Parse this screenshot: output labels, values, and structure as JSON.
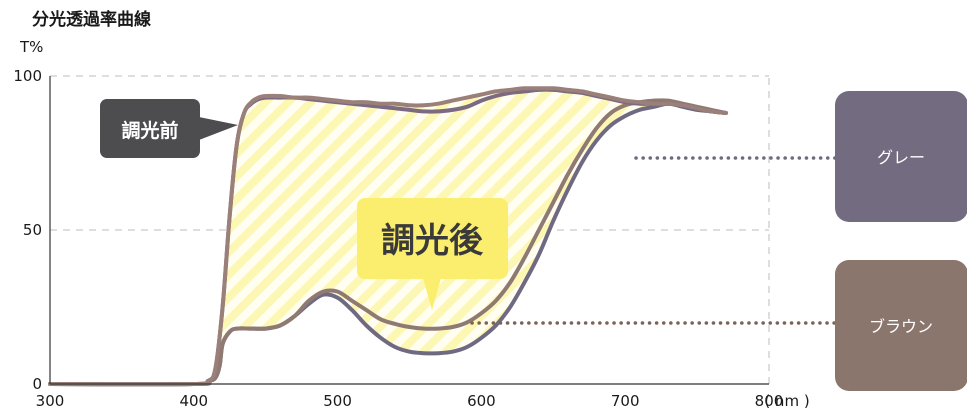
{
  "chart_data": {
    "type": "line",
    "title": "分光透過率曲線",
    "ylabel": "T%",
    "xlabel": "( nm )",
    "xlim": [
      300,
      800
    ],
    "ylim": [
      0,
      100
    ],
    "x_ticks": [
      "300",
      "400",
      "500",
      "600",
      "700",
      "800"
    ],
    "y_ticks": [
      "100",
      "50",
      "0"
    ],
    "grid": "dashed horizontal at 50 and 100, dashed vertical at 800",
    "series": [
      {
        "name": "グレー",
        "state": "調光後",
        "color": "#6f6a82",
        "x": [
          300,
          400,
          410,
          415,
          418,
          420,
          425,
          430,
          440,
          450,
          460,
          470,
          480,
          490,
          500,
          510,
          520,
          530,
          540,
          550,
          560,
          570,
          580,
          590,
          600,
          610,
          620,
          630,
          640,
          650,
          660,
          670,
          680,
          690,
          700,
          710,
          720,
          730,
          740,
          750,
          760,
          770
        ],
        "y": [
          0,
          0,
          1,
          2,
          6,
          13,
          17,
          18,
          18,
          18,
          19,
          22,
          26,
          29,
          28,
          24,
          19,
          15,
          12,
          10.5,
          10,
          10,
          10.5,
          12,
          15,
          19,
          25,
          33,
          42,
          53,
          63,
          72,
          79,
          84,
          87,
          89,
          90,
          91,
          90,
          89,
          88.5,
          88
        ]
      },
      {
        "name": "ブラウン",
        "state": "調光後",
        "color": "#8f7a73",
        "x": [
          300,
          400,
          410,
          415,
          418,
          420,
          425,
          430,
          440,
          450,
          460,
          470,
          480,
          490,
          500,
          510,
          520,
          530,
          540,
          550,
          560,
          570,
          580,
          590,
          600,
          610,
          620,
          630,
          640,
          650,
          660,
          670,
          680,
          690,
          700,
          710,
          720,
          730,
          740,
          750,
          760,
          770
        ],
        "y": [
          0,
          0,
          1,
          2,
          6,
          13,
          17,
          18,
          18,
          18,
          19,
          22,
          27,
          30,
          30,
          27,
          24,
          21,
          19.5,
          18.5,
          18,
          18,
          18.5,
          20,
          23,
          27,
          33,
          41,
          50,
          59,
          68,
          76,
          83,
          88,
          90.5,
          91.5,
          92,
          92,
          91,
          90,
          89,
          88
        ]
      },
      {
        "name": "グレー",
        "state": "調光前",
        "color": "#7b6a82",
        "x": [
          300,
          400,
          410,
          415,
          420,
          425,
          430,
          435,
          440,
          445,
          450,
          460,
          470,
          480,
          490,
          500,
          510,
          520,
          530,
          540,
          550,
          560,
          570,
          580,
          590,
          600,
          610,
          620,
          630,
          640,
          650,
          660,
          670,
          680,
          690,
          700,
          710,
          720,
          730,
          740,
          750,
          760,
          770
        ],
        "y": [
          0,
          0,
          1,
          5,
          25,
          55,
          78,
          88,
          91,
          92.5,
          93,
          93,
          93,
          92.5,
          92,
          91.5,
          91,
          90.5,
          90,
          89.5,
          89,
          88.5,
          88.5,
          89,
          90,
          92,
          93.5,
          94.5,
          95,
          95.5,
          95.5,
          95,
          94.5,
          93.5,
          92.5,
          91.5,
          91,
          91,
          91,
          90.5,
          89.5,
          88.5,
          88
        ]
      },
      {
        "name": "ブラウン",
        "state": "調光前",
        "color": "#9a8078",
        "x": [
          300,
          400,
          410,
          415,
          420,
          425,
          430,
          435,
          440,
          445,
          450,
          460,
          470,
          480,
          490,
          500,
          510,
          520,
          530,
          540,
          550,
          560,
          570,
          580,
          590,
          600,
          610,
          620,
          630,
          640,
          650,
          660,
          670,
          680,
          690,
          700,
          710,
          720,
          730,
          740,
          750,
          760,
          770
        ],
        "y": [
          0,
          0,
          1,
          5,
          25,
          55,
          78,
          88,
          91.5,
          93,
          93.5,
          93.5,
          93,
          93,
          92.5,
          92,
          91.5,
          91.5,
          91,
          91,
          90.5,
          90.5,
          91,
          92,
          93,
          94,
          95,
          95.5,
          96,
          96,
          96,
          95.5,
          95,
          94,
          93,
          92,
          91.5,
          91,
          91,
          90.5,
          89.5,
          88.5,
          88
        ]
      }
    ],
    "annotations": {
      "before_label": "調光前",
      "after_label": "調光後"
    },
    "legend": [
      {
        "label": "グレー",
        "color": "#736c80"
      },
      {
        "label": "ブラウン",
        "color": "#8b766e"
      }
    ]
  }
}
